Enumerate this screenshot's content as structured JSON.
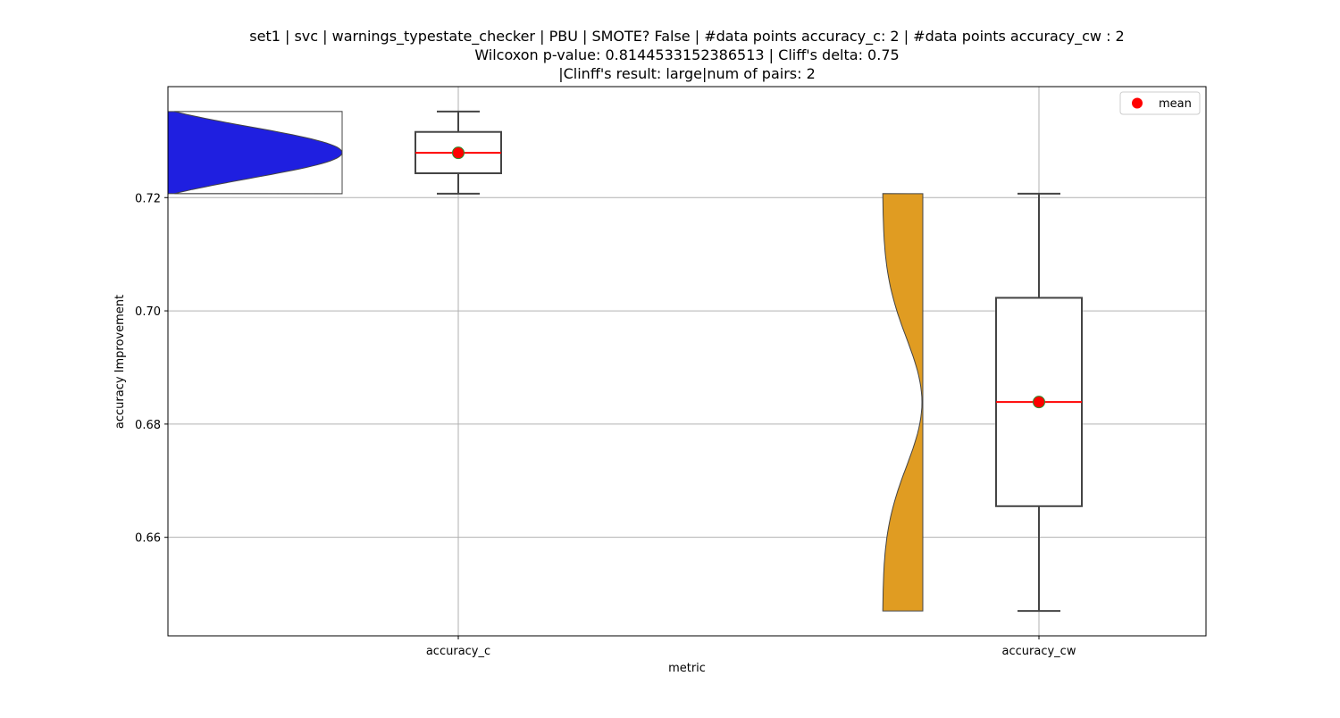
{
  "chart_data": {
    "type": "violin+box",
    "title_lines": [
      "set1 | svc | warnings_typestate_checker | PBU | SMOTE? False | #data points accuracy_c: 2 | #data points accuracy_cw : 2",
      "Wilcoxon p-value: 0.8144533152386513 | Cliff's delta: 0.75",
      "|Clinff's result: large|num of pairs: 2"
    ],
    "xlabel": "metric",
    "ylabel": "accuracy Improvement",
    "categories": [
      "accuracy_c",
      "accuracy_cw"
    ],
    "ylim": [
      0.6426,
      0.7396
    ],
    "yticks": [
      0.66,
      0.68,
      0.7,
      0.72
    ],
    "ytick_labels": [
      "0.66",
      "0.68",
      "0.70",
      "0.72"
    ],
    "grid": true,
    "legend": {
      "position": "top-right",
      "entries": [
        {
          "label": "mean",
          "marker": "circle",
          "color": "#ff0000"
        }
      ]
    },
    "series": [
      {
        "category": "accuracy_c",
        "violin_color": "#1f1fe0",
        "min": 0.7207,
        "q1": 0.7243,
        "median": 0.7279,
        "q3": 0.7316,
        "max": 0.7352,
        "mean": 0.7279
      },
      {
        "category": "accuracy_cw",
        "violin_color": "#e09c22",
        "min": 0.647,
        "q1": 0.6655,
        "median": 0.6839,
        "q3": 0.7023,
        "max": 0.7207,
        "mean": 0.6839
      }
    ],
    "colors": {
      "median_line": "#ff0000",
      "mean_marker": "#ff0000",
      "mean_marker_edge": "#2e8b2e",
      "box_edge": "#444444",
      "grid": "#b0b0b0"
    }
  }
}
